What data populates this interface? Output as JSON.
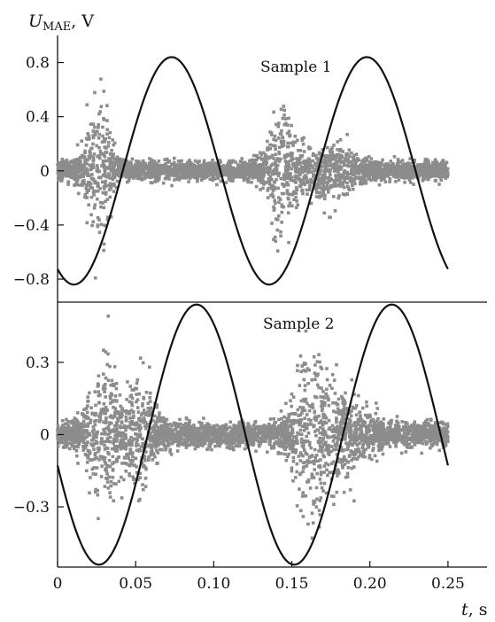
{
  "chart_data": [
    {
      "type": "scatter",
      "panel": "top",
      "annotation": "Sample  1",
      "ylabel": {
        "main": "U",
        "subscript": "MAE",
        "unit": ", V"
      },
      "xlim": [
        0,
        0.275
      ],
      "ylim": [
        -0.97,
        1.0
      ],
      "yticks": [
        0.8,
        0.4,
        0,
        -0.4,
        -0.8
      ],
      "ytick_labels": [
        "0.8",
        "0.4",
        "0",
        "−0.4",
        "−0.8"
      ],
      "sine": {
        "amplitude": 0.84,
        "frequency_hz": 8,
        "peak_t": 0.073,
        "t_range": [
          0,
          0.25
        ]
      },
      "noise": {
        "t_range": [
          0,
          0.25
        ],
        "base_amplitude": 0.06,
        "color": "#8c8c8c",
        "bursts": [
          {
            "t": 0.026,
            "spread": 0.006,
            "amplitude": 0.55
          },
          {
            "t": 0.144,
            "spread": 0.007,
            "amplitude": 0.45
          },
          {
            "t": 0.175,
            "spread": 0.012,
            "amplitude": 0.18
          }
        ]
      },
      "line_color": "#111111"
    },
    {
      "type": "scatter",
      "panel": "bottom",
      "annotation": "Sample 2",
      "xlabel": {
        "main": "t",
        "unit": ", s"
      },
      "xlim": [
        0,
        0.275
      ],
      "ylim": [
        -0.55,
        0.55
      ],
      "xticks": [
        0,
        0.05,
        0.1,
        0.15,
        0.2,
        0.25
      ],
      "xtick_labels": [
        "0",
        "0.05",
        "0.10",
        "0.15",
        "0.20",
        "0.25"
      ],
      "yticks": [
        0.3,
        0,
        -0.3
      ],
      "ytick_labels": [
        "0.3",
        "0",
        "−0.3"
      ],
      "sine": {
        "amplitude": 0.54,
        "frequency_hz": 8,
        "peak_t": 0.089,
        "t_range": [
          0,
          0.25
        ]
      },
      "noise": {
        "t_range": [
          0,
          0.25
        ],
        "base_amplitude": 0.045,
        "color": "#8c8c8c",
        "bursts": [
          {
            "t": 0.03,
            "spread": 0.008,
            "amplitude": 0.26
          },
          {
            "t": 0.052,
            "spread": 0.008,
            "amplitude": 0.2
          },
          {
            "t": 0.163,
            "spread": 0.009,
            "amplitude": 0.3
          },
          {
            "t": 0.185,
            "spread": 0.012,
            "amplitude": 0.13
          }
        ]
      },
      "line_color": "#111111"
    }
  ]
}
